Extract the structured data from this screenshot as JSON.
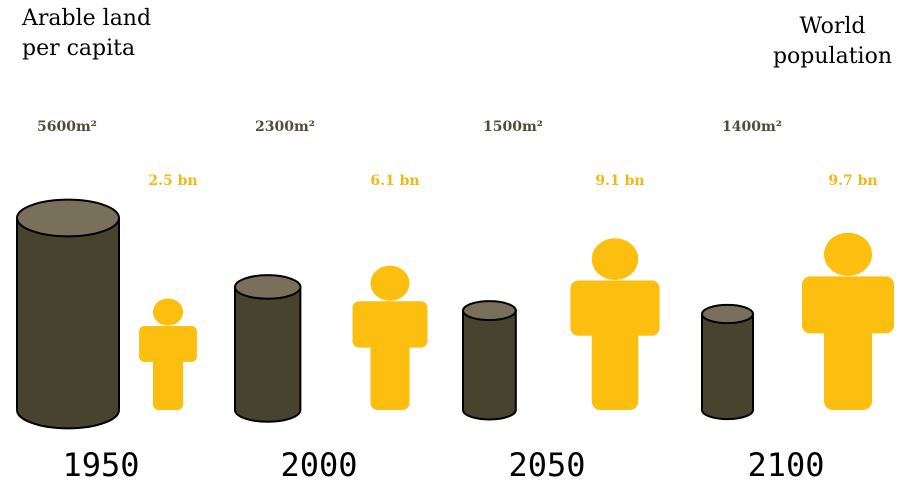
{
  "titles": {
    "left_line1": "Arable land",
    "left_line2": "per capita",
    "right_line1": "World",
    "right_line2": "population"
  },
  "colors": {
    "cylinder_body": "#48432f",
    "cylinder_top": "#79705c",
    "cylinder_stroke": "#000000",
    "person": "#fdbf0f",
    "land_label": "#534b38",
    "pop_label": "#f6b716",
    "year": "#000000"
  },
  "chart_data": {
    "type": "pictograph",
    "categories": [
      "1950",
      "2000",
      "2050",
      "2100"
    ],
    "series": [
      {
        "name": "Arable land per capita",
        "values": [
          5600,
          2300,
          1500,
          1400
        ],
        "labels": [
          "5600m²",
          "2300m²",
          "1500m²",
          "1400m²"
        ],
        "icon": "cylinder-icon"
      },
      {
        "name": "World population",
        "values": [
          2.5,
          6.1,
          9.1,
          9.7
        ],
        "labels": [
          "2.5 bn",
          "6.1 bn",
          "9.1 bn",
          "9.7 bn"
        ],
        "icon": "person-icon"
      }
    ]
  }
}
